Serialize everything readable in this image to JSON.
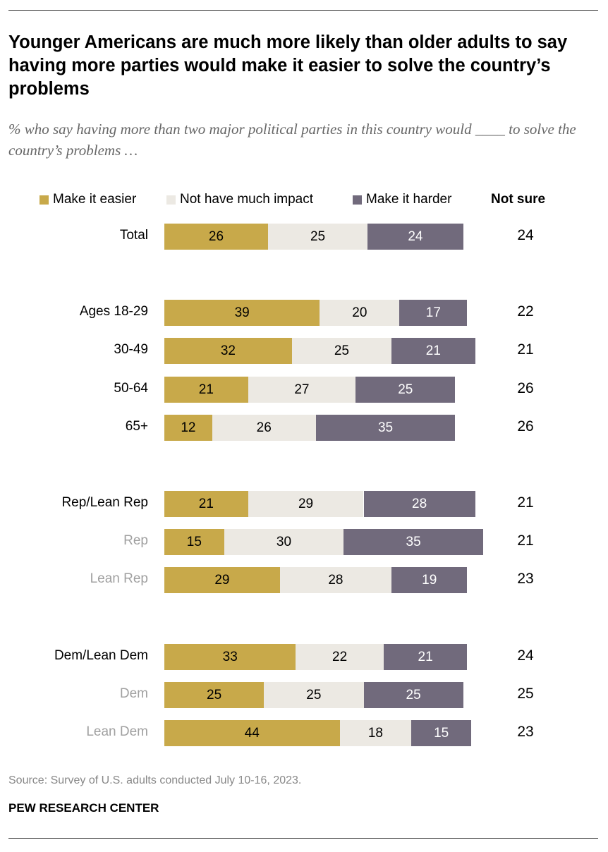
{
  "title": "Younger Americans are much more likely than older adults to say having more parties would make it easier to solve the country’s problems",
  "subtitle": "% who say having more than two major political parties in this country would ____ to solve the country’s problems …",
  "source": "Source: Survey of U.S. adults conducted July 10-16, 2023.",
  "brand": "PEW RESEARCH CENTER",
  "colors": {
    "easier": "#C8A94A",
    "no_impact": "#ECE9E3",
    "harder": "#716A7C",
    "sub_label": "#A0A0A0"
  },
  "chart_data": {
    "type": "bar",
    "orientation": "horizontal-stacked",
    "title": "Younger Americans are much more likely than older adults to say having more parties would make it easier to solve the country’s problems",
    "legend": [
      "Make it easier",
      "Not have much impact",
      "Make it harder"
    ],
    "extra_column_header": "Not sure",
    "categories": [
      "Total",
      "Ages 18-29",
      "30-49",
      "50-64",
      "65+",
      "Rep/Lean Rep",
      "Rep",
      "Lean Rep",
      "Dem/Lean Dem",
      "Dem",
      "Lean Dem"
    ],
    "subgroup": [
      false,
      false,
      false,
      false,
      false,
      false,
      true,
      true,
      false,
      true,
      true
    ],
    "series": [
      {
        "name": "Make it easier",
        "values": [
          26,
          39,
          32,
          21,
          12,
          21,
          15,
          29,
          33,
          25,
          44
        ]
      },
      {
        "name": "Not have much impact",
        "values": [
          25,
          20,
          25,
          27,
          26,
          29,
          30,
          28,
          22,
          25,
          18
        ]
      },
      {
        "name": "Make it harder",
        "values": [
          24,
          17,
          21,
          25,
          35,
          28,
          35,
          19,
          21,
          25,
          15
        ]
      }
    ],
    "not_sure": [
      24,
      22,
      21,
      26,
      26,
      21,
      21,
      23,
      24,
      25,
      23
    ]
  }
}
